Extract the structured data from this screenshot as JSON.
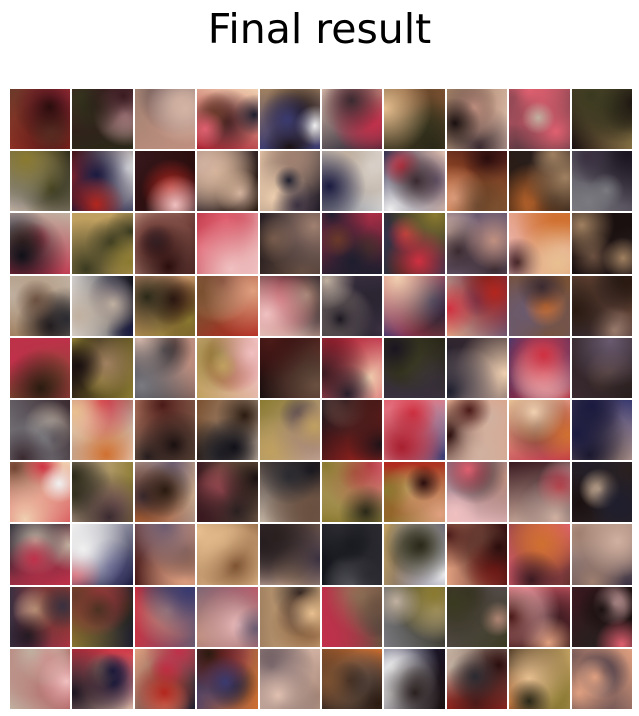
{
  "title": "Final result",
  "grid": {
    "rows": 10,
    "cols": 10,
    "palettes": [
      [
        "#b3261e",
        "#4a1a18",
        "#e0a080",
        "#2a0d0d"
      ],
      [
        "#c0304a",
        "#1e1e2e",
        "#f0d0b0",
        "#6a3a2a"
      ],
      [
        "#2a1a10",
        "#d07030",
        "#7a5030",
        "#e8c090"
      ],
      [
        "#8a7a30",
        "#3a3a20",
        "#c0a060",
        "#2a2818"
      ],
      [
        "#3a3040",
        "#a08070",
        "#1a1520",
        "#d0b0a0"
      ],
      [
        "#6a5a70",
        "#c09080",
        "#3a2a30",
        "#e0c0b0"
      ],
      [
        "#2a2a30",
        "#7a7a80",
        "#101018",
        "#c0b0a0"
      ],
      [
        "#a82030",
        "#e06070",
        "#3a1a20",
        "#f0c0c0"
      ],
      [
        "#d03040",
        "#3a3a70",
        "#f0f0f0",
        "#1a1a40"
      ],
      [
        "#2a2020",
        "#6a5040",
        "#1a1010",
        "#a08060"
      ]
    ]
  }
}
